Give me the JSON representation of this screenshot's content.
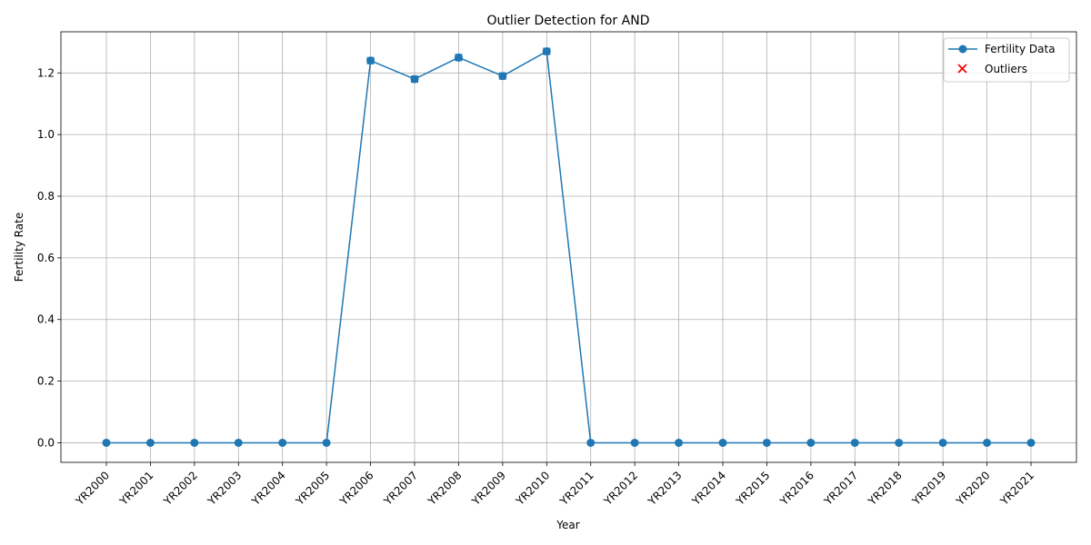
{
  "chart_data": {
    "type": "line",
    "title": "Outlier Detection for AND",
    "xlabel": "Year",
    "ylabel": "Fertility Rate",
    "categories": [
      "YR2000",
      "YR2001",
      "YR2002",
      "YR2003",
      "YR2004",
      "YR2005",
      "YR2006",
      "YR2007",
      "YR2008",
      "YR2009",
      "YR2010",
      "YR2011",
      "YR2012",
      "YR2013",
      "YR2014",
      "YR2015",
      "YR2016",
      "YR2017",
      "YR2018",
      "YR2019",
      "YR2020",
      "YR2021"
    ],
    "series": [
      {
        "name": "Fertility Data",
        "color": "#1f77b4",
        "marker": "circle",
        "values": [
          0,
          0,
          0,
          0,
          0,
          0,
          1.24,
          1.18,
          1.25,
          1.19,
          1.27,
          0,
          0,
          0,
          0,
          0,
          0,
          0,
          0,
          0,
          0,
          0
        ]
      }
    ],
    "outliers": {
      "name": "Outliers",
      "color": "#ff0000",
      "marker": "x",
      "points": []
    },
    "highlighted_points": {
      "marker": "square",
      "color": "#1f77b4",
      "categories": [
        "YR2006",
        "YR2007",
        "YR2008",
        "YR2009",
        "YR2010"
      ]
    },
    "yticks": [
      0.0,
      0.2,
      0.4,
      0.6,
      0.8,
      1.0,
      1.2
    ],
    "ytick_labels": [
      "0.0",
      "0.2",
      "0.4",
      "0.6",
      "0.8",
      "1.0",
      "1.2"
    ],
    "ylim": [
      -0.0635,
      1.3335
    ],
    "grid": true,
    "legend_position": "top-right"
  }
}
